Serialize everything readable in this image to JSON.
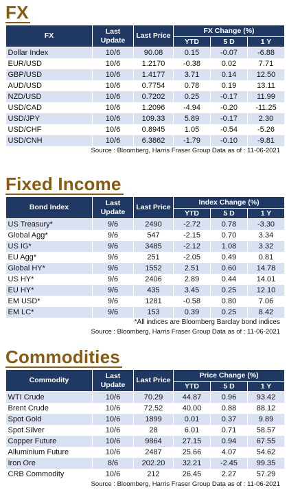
{
  "fx": {
    "title": "FX",
    "headers": {
      "name": "FX",
      "last_update": "Last Update",
      "last_price": "Last Price",
      "group": "FX Change (%)",
      "ytd": "YTD",
      "d5": "5 D",
      "y1": "1 Y"
    },
    "rows": [
      {
        "name": "Dollar Index",
        "update": "10/6",
        "price": "90.08",
        "ytd": "0.15",
        "d5": "-0.07",
        "y1": "-6.88"
      },
      {
        "name": "EUR/USD",
        "update": "10/6",
        "price": "1.2170",
        "ytd": "-0.38",
        "d5": "0.02",
        "y1": "7.71"
      },
      {
        "name": "GBP/USD",
        "update": "10/6",
        "price": "1.4177",
        "ytd": "3.71",
        "d5": "0.14",
        "y1": "12.50"
      },
      {
        "name": "AUD/USD",
        "update": "10/6",
        "price": "0.7754",
        "ytd": "0.78",
        "d5": "0.19",
        "y1": "13.11"
      },
      {
        "name": "NZD/USD",
        "update": "10/6",
        "price": "0.7202",
        "ytd": "0.25",
        "d5": "-0.17",
        "y1": "11.99"
      },
      {
        "name": "USD/CAD",
        "update": "10/6",
        "price": "1.2096",
        "ytd": "-4.94",
        "d5": "-0.20",
        "y1": "-11.25"
      },
      {
        "name": "USD/JPY",
        "update": "10/6",
        "price": "109.33",
        "ytd": "5.89",
        "d5": "-0.17",
        "y1": "2.30"
      },
      {
        "name": "USD/CHF",
        "update": "10/6",
        "price": "0.8945",
        "ytd": "1.05",
        "d5": "-0.54",
        "y1": "-5.26"
      },
      {
        "name": "USD/CNH",
        "update": "10/6",
        "price": "6.3862",
        "ytd": "-1.79",
        "d5": "-0.10",
        "y1": "-9.81"
      }
    ],
    "source": "Source : Bloomberg, Harris Fraser Group Data as of : 11-06-2021"
  },
  "fixed_income": {
    "title": "Fixed Income",
    "headers": {
      "name": "Bond Index",
      "last_update": "Last Update",
      "last_price": "Last Price",
      "group": "Index Change (%)",
      "ytd": "YTD",
      "d5": "5 D",
      "y1": "1 Y"
    },
    "rows": [
      {
        "name": "US Treasury*",
        "update": "9/6",
        "price": "2490",
        "ytd": "-2.72",
        "d5": "0.78",
        "y1": "-3.30"
      },
      {
        "name": "Global Agg*",
        "update": "9/6",
        "price": "547",
        "ytd": "-2.15",
        "d5": "0.70",
        "y1": "3.34"
      },
      {
        "name": "US IG*",
        "update": "9/6",
        "price": "3485",
        "ytd": "-2.12",
        "d5": "1.08",
        "y1": "3.32"
      },
      {
        "name": "EU Agg*",
        "update": "9/6",
        "price": "251",
        "ytd": "-2.05",
        "d5": "0.49",
        "y1": "0.81"
      },
      {
        "name": "Global HY*",
        "update": "9/6",
        "price": "1552",
        "ytd": "2.51",
        "d5": "0.60",
        "y1": "14.78"
      },
      {
        "name": "US HY*",
        "update": "9/6",
        "price": "2406",
        "ytd": "2.89",
        "d5": "0.44",
        "y1": "14.01"
      },
      {
        "name": "EU HY*",
        "update": "9/6",
        "price": "435",
        "ytd": "3.45",
        "d5": "0.25",
        "y1": "12.10"
      },
      {
        "name": "EM USD*",
        "update": "9/6",
        "price": "1281",
        "ytd": "-0.58",
        "d5": "0.80",
        "y1": "7.06"
      },
      {
        "name": "EM LC*",
        "update": "9/6",
        "price": "153",
        "ytd": "0.39",
        "d5": "0.25",
        "y1": "8.42"
      }
    ],
    "note": "*All indices are Bloomberg Barclay bond indices",
    "source": "Source : Bloomberg, Harris Fraser Group Data as of : 11-06-2021"
  },
  "commodities": {
    "title": "Commodities",
    "headers": {
      "name": "Commodity",
      "last_update": "Last Update",
      "last_price": "Last Price",
      "group": "Price Change (%)",
      "ytd": "YTD",
      "d5": "5 D",
      "y1": "1 Y"
    },
    "rows": [
      {
        "name": "WTI Crude",
        "update": "10/6",
        "price": "70.29",
        "ytd": "44.87",
        "d5": "0.96",
        "y1": "93.42"
      },
      {
        "name": "Brent Crude",
        "update": "10/6",
        "price": "72.52",
        "ytd": "40.00",
        "d5": "0.88",
        "y1": "88.12"
      },
      {
        "name": "Spot Gold",
        "update": "10/6",
        "price": "1899",
        "ytd": "0.01",
        "d5": "0.37",
        "y1": "9.89"
      },
      {
        "name": "Spot Silver",
        "update": "10/6",
        "price": "28",
        "ytd": "6.01",
        "d5": "0.71",
        "y1": "58.57"
      },
      {
        "name": "Copper Future",
        "update": "10/6",
        "price": "9864",
        "ytd": "27.15",
        "d5": "0.94",
        "y1": "67.55"
      },
      {
        "name": "Alluminium Future",
        "update": "10/6",
        "price": "2487",
        "ytd": "25.66",
        "d5": "4.07",
        "y1": "54.62"
      },
      {
        "name": "Iron Ore",
        "update": "8/6",
        "price": "202.20",
        "ytd": "32.21",
        "d5": "-2.45",
        "y1": "99.35"
      },
      {
        "name": "CRB Commodity",
        "update": "10/6",
        "price": "212",
        "ytd": "26.45",
        "d5": "2.27",
        "y1": "57.29"
      }
    ],
    "source": "Source : Bloomberg, Harris Fraser Group Data as of : 11-06-2021"
  }
}
